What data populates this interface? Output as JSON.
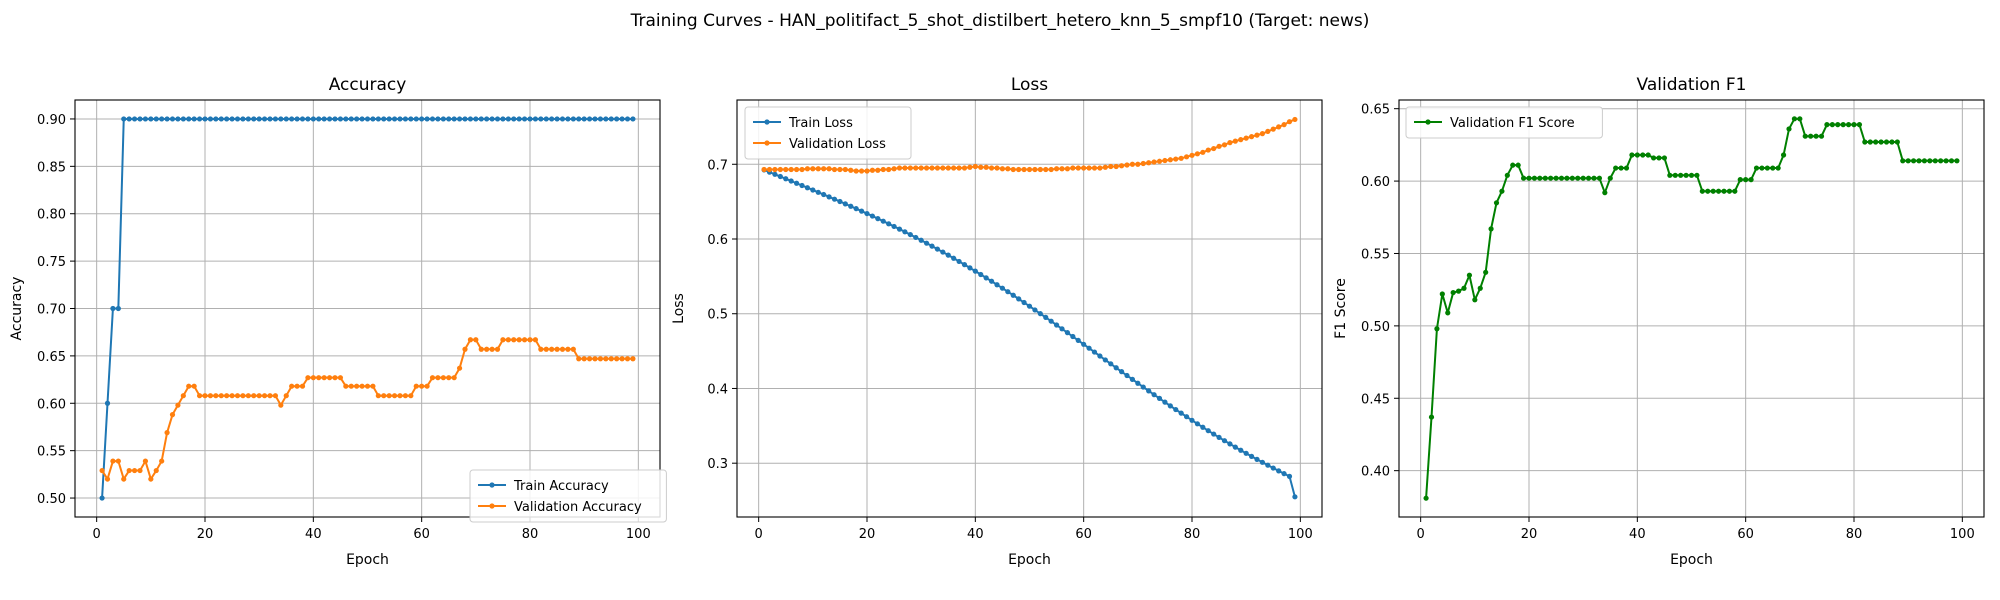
{
  "suptitle": "Training Curves - HAN_politifact_5_shot_distilbert_hetero_knn_5_smpf10 (Target: news)",
  "chart_data": [
    {
      "type": "line",
      "title": "Accuracy",
      "xlabel": "Epoch",
      "ylabel": "Accuracy",
      "xlim": [
        -4,
        104
      ],
      "ylim": [
        0.48,
        0.92
      ],
      "xticks": [
        0,
        20,
        40,
        60,
        80,
        100
      ],
      "xtick_labels": [
        "0",
        "20",
        "40",
        "60",
        "80",
        "100"
      ],
      "yticks": [
        0.5,
        0.55,
        0.6,
        0.65,
        0.7,
        0.75,
        0.8,
        0.85,
        0.9
      ],
      "ytick_labels": [
        "0.50",
        "0.55",
        "0.60",
        "0.65",
        "0.70",
        "0.75",
        "0.80",
        "0.85",
        "0.90"
      ],
      "grid": true,
      "legend_position": "lower-right",
      "series": [
        {
          "name": "Train Accuracy",
          "color": "#1f77b4",
          "x_start": 1,
          "values": [
            0.5,
            0.6,
            0.7,
            0.7,
            0.9,
            0.9,
            0.9,
            0.9,
            0.9,
            0.9,
            0.9,
            0.9,
            0.9,
            0.9,
            0.9,
            0.9,
            0.9,
            0.9,
            0.9,
            0.9,
            0.9,
            0.9,
            0.9,
            0.9,
            0.9,
            0.9,
            0.9,
            0.9,
            0.9,
            0.9,
            0.9,
            0.9,
            0.9,
            0.9,
            0.9,
            0.9,
            0.9,
            0.9,
            0.9,
            0.9,
            0.9,
            0.9,
            0.9,
            0.9,
            0.9,
            0.9,
            0.9,
            0.9,
            0.9,
            0.9,
            0.9,
            0.9,
            0.9,
            0.9,
            0.9,
            0.9,
            0.9,
            0.9,
            0.9,
            0.9,
            0.9,
            0.9,
            0.9,
            0.9,
            0.9,
            0.9,
            0.9,
            0.9,
            0.9,
            0.9,
            0.9,
            0.9,
            0.9,
            0.9,
            0.9,
            0.9,
            0.9,
            0.9,
            0.9,
            0.9,
            0.9,
            0.9,
            0.9,
            0.9,
            0.9,
            0.9,
            0.9,
            0.9,
            0.9,
            0.9,
            0.9,
            0.9,
            0.9,
            0.9,
            0.9,
            0.9,
            0.9,
            0.9,
            0.9
          ]
        },
        {
          "name": "Validation Accuracy",
          "color": "#ff7f0e",
          "x_start": 1,
          "values": [
            0.529,
            0.52,
            0.539,
            0.539,
            0.52,
            0.529,
            0.529,
            0.529,
            0.539,
            0.52,
            0.529,
            0.539,
            0.569,
            0.588,
            0.598,
            0.608,
            0.618,
            0.618,
            0.608,
            0.608,
            0.608,
            0.608,
            0.608,
            0.608,
            0.608,
            0.608,
            0.608,
            0.608,
            0.608,
            0.608,
            0.608,
            0.608,
            0.608,
            0.598,
            0.608,
            0.618,
            0.618,
            0.618,
            0.627,
            0.627,
            0.627,
            0.627,
            0.627,
            0.627,
            0.627,
            0.618,
            0.618,
            0.618,
            0.618,
            0.618,
            0.618,
            0.608,
            0.608,
            0.608,
            0.608,
            0.608,
            0.608,
            0.608,
            0.618,
            0.618,
            0.618,
            0.627,
            0.627,
            0.627,
            0.627,
            0.627,
            0.637,
            0.657,
            0.667,
            0.667,
            0.657,
            0.657,
            0.657,
            0.657,
            0.667,
            0.667,
            0.667,
            0.667,
            0.667,
            0.667,
            0.667,
            0.657,
            0.657,
            0.657,
            0.657,
            0.657,
            0.657,
            0.657,
            0.647,
            0.647,
            0.647,
            0.647,
            0.647,
            0.647,
            0.647,
            0.647,
            0.647,
            0.647,
            0.647
          ]
        }
      ]
    },
    {
      "type": "line",
      "title": "Loss",
      "xlabel": "Epoch",
      "ylabel": "Loss",
      "xlim": [
        -4,
        104
      ],
      "ylim": [
        0.228,
        0.786
      ],
      "xticks": [
        0,
        20,
        40,
        60,
        80,
        100
      ],
      "xtick_labels": [
        "0",
        "20",
        "40",
        "60",
        "80",
        "100"
      ],
      "yticks": [
        0.3,
        0.4,
        0.5,
        0.6,
        0.7
      ],
      "ytick_labels": [
        "0.3",
        "0.4",
        "0.5",
        "0.6",
        "0.7"
      ],
      "grid": true,
      "legend_position": "upper-left",
      "series": [
        {
          "name": "Train Loss",
          "color": "#1f77b4",
          "x_start": 1,
          "values": [
            0.6925,
            0.6895,
            0.6866,
            0.6836,
            0.6806,
            0.6776,
            0.6746,
            0.6716,
            0.6686,
            0.6656,
            0.6625,
            0.6595,
            0.6564,
            0.6533,
            0.6502,
            0.647,
            0.6438,
            0.6406,
            0.6373,
            0.634,
            0.6307,
            0.6273,
            0.6238,
            0.6203,
            0.6168,
            0.6132,
            0.6096,
            0.6059,
            0.6021,
            0.5983,
            0.5944,
            0.5905,
            0.5865,
            0.5825,
            0.5784,
            0.5742,
            0.57,
            0.5657,
            0.5614,
            0.557,
            0.5525,
            0.548,
            0.5435,
            0.5388,
            0.5342,
            0.5295,
            0.5247,
            0.5199,
            0.515,
            0.5101,
            0.5051,
            0.5001,
            0.4951,
            0.49,
            0.4849,
            0.4798,
            0.4747,
            0.4695,
            0.4643,
            0.4591,
            0.4539,
            0.4487,
            0.4434,
            0.4382,
            0.433,
            0.4277,
            0.4225,
            0.4173,
            0.4122,
            0.407,
            0.4019,
            0.3968,
            0.3917,
            0.3867,
            0.3817,
            0.3767,
            0.3718,
            0.367,
            0.3622,
            0.3574,
            0.3527,
            0.3481,
            0.3435,
            0.339,
            0.3345,
            0.3301,
            0.3258,
            0.3215,
            0.3173,
            0.3132,
            0.3091,
            0.3051,
            0.3012,
            0.2973,
            0.2935,
            0.2897,
            0.286,
            0.2824,
            0.255
          ]
        },
        {
          "name": "Validation Loss",
          "color": "#ff7f0e",
          "x_start": 1,
          "values": [
            0.693,
            0.693,
            0.693,
            0.693,
            0.693,
            0.693,
            0.693,
            0.693,
            0.694,
            0.694,
            0.694,
            0.694,
            0.694,
            0.693,
            0.693,
            0.693,
            0.692,
            0.691,
            0.691,
            0.691,
            0.692,
            0.692,
            0.693,
            0.693,
            0.694,
            0.695,
            0.695,
            0.695,
            0.695,
            0.695,
            0.695,
            0.695,
            0.695,
            0.695,
            0.695,
            0.695,
            0.695,
            0.695,
            0.696,
            0.697,
            0.696,
            0.696,
            0.695,
            0.695,
            0.694,
            0.694,
            0.693,
            0.693,
            0.693,
            0.693,
            0.693,
            0.693,
            0.693,
            0.693,
            0.694,
            0.694,
            0.694,
            0.695,
            0.695,
            0.695,
            0.695,
            0.695,
            0.695,
            0.696,
            0.697,
            0.697,
            0.698,
            0.699,
            0.7,
            0.7,
            0.701,
            0.702,
            0.703,
            0.704,
            0.705,
            0.706,
            0.707,
            0.708,
            0.71,
            0.712,
            0.714,
            0.716,
            0.719,
            0.721,
            0.724,
            0.726,
            0.729,
            0.731,
            0.733,
            0.735,
            0.737,
            0.739,
            0.741,
            0.744,
            0.747,
            0.75,
            0.753,
            0.757,
            0.76
          ]
        }
      ]
    },
    {
      "type": "line",
      "title": "Validation F1",
      "xlabel": "Epoch",
      "ylabel": "F1 Score",
      "xlim": [
        -4,
        104
      ],
      "ylim": [
        0.368,
        0.656
      ],
      "xticks": [
        0,
        20,
        40,
        60,
        80,
        100
      ],
      "xtick_labels": [
        "0",
        "20",
        "40",
        "60",
        "80",
        "100"
      ],
      "yticks": [
        0.4,
        0.45,
        0.5,
        0.55,
        0.6,
        0.65
      ],
      "ytick_labels": [
        "0.40",
        "0.45",
        "0.50",
        "0.55",
        "0.60",
        "0.65"
      ],
      "grid": true,
      "legend_position": "upper-left",
      "series": [
        {
          "name": "Validation F1 Score",
          "color": "#008000",
          "x_start": 1,
          "values": [
            0.381,
            0.437,
            0.498,
            0.522,
            0.509,
            0.523,
            0.524,
            0.526,
            0.535,
            0.518,
            0.526,
            0.537,
            0.567,
            0.585,
            0.593,
            0.604,
            0.611,
            0.611,
            0.602,
            0.602,
            0.602,
            0.602,
            0.602,
            0.602,
            0.602,
            0.602,
            0.602,
            0.602,
            0.602,
            0.602,
            0.602,
            0.602,
            0.602,
            0.592,
            0.602,
            0.609,
            0.609,
            0.609,
            0.618,
            0.618,
            0.618,
            0.618,
            0.616,
            0.616,
            0.616,
            0.604,
            0.604,
            0.604,
            0.604,
            0.604,
            0.604,
            0.593,
            0.593,
            0.593,
            0.593,
            0.593,
            0.593,
            0.593,
            0.601,
            0.601,
            0.601,
            0.609,
            0.609,
            0.609,
            0.609,
            0.609,
            0.618,
            0.636,
            0.643,
            0.643,
            0.631,
            0.631,
            0.631,
            0.631,
            0.639,
            0.639,
            0.639,
            0.639,
            0.639,
            0.639,
            0.639,
            0.627,
            0.627,
            0.627,
            0.627,
            0.627,
            0.627,
            0.627,
            0.614,
            0.614,
            0.614,
            0.614,
            0.614,
            0.614,
            0.614,
            0.614,
            0.614,
            0.614,
            0.614
          ]
        }
      ]
    }
  ]
}
